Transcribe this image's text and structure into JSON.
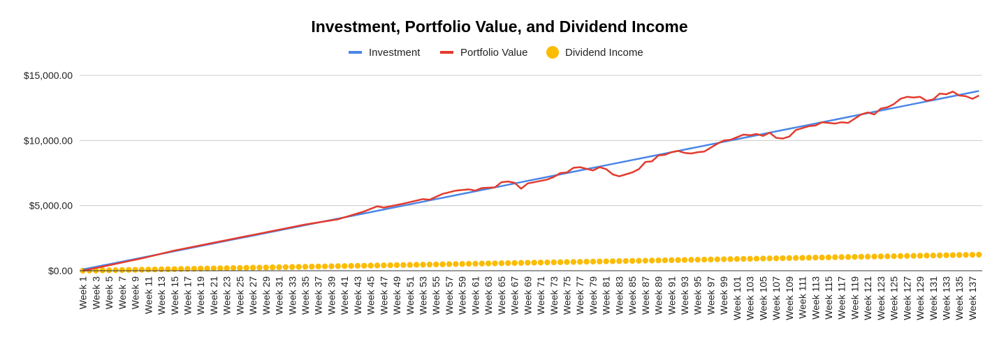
{
  "chart_data": {
    "type": "line",
    "title": "Investment, Portfolio Value, and Dividend Income",
    "xlabel": "",
    "ylabel": "",
    "x_label_prefix": "Week ",
    "x_count": 138,
    "x_tick_label_step": 2,
    "ylim": [
      0,
      15000
    ],
    "y_ticks": [
      0,
      5000,
      10000,
      15000
    ],
    "y_tick_labels": [
      "$0.00",
      "$5,000.00",
      "$10,000.00",
      "$15,000.00"
    ],
    "grid": true,
    "legend_position": "top",
    "colors": {
      "investment": "#4a86e8",
      "portfolio": "#e33b2e",
      "dividend": "#fbbc04",
      "grid": "#cccccc",
      "axis": "#333333"
    },
    "series": [
      {
        "name": "Investment",
        "style": "line",
        "weekly_increment": 100,
        "start_value": 0
      },
      {
        "name": "Portfolio Value",
        "style": "line",
        "keypoints": [
          [
            1,
            0
          ],
          [
            10,
            950
          ],
          [
            15,
            1550
          ],
          [
            20,
            2050
          ],
          [
            25,
            2550
          ],
          [
            30,
            3050
          ],
          [
            35,
            3550
          ],
          [
            40,
            3950
          ],
          [
            44,
            4550
          ],
          [
            46,
            4950
          ],
          [
            47,
            4850
          ],
          [
            50,
            5150
          ],
          [
            53,
            5500
          ],
          [
            54,
            5450
          ],
          [
            56,
            5900
          ],
          [
            58,
            6150
          ],
          [
            60,
            6250
          ],
          [
            61,
            6150
          ],
          [
            62,
            6350
          ],
          [
            64,
            6400
          ],
          [
            65,
            6800
          ],
          [
            66,
            6850
          ],
          [
            67,
            6750
          ],
          [
            68,
            6300
          ],
          [
            69,
            6700
          ],
          [
            72,
            7000
          ],
          [
            73,
            7200
          ],
          [
            74,
            7500
          ],
          [
            75,
            7550
          ],
          [
            76,
            7900
          ],
          [
            77,
            7950
          ],
          [
            79,
            7700
          ],
          [
            80,
            7950
          ],
          [
            81,
            7800
          ],
          [
            82,
            7400
          ],
          [
            83,
            7250
          ],
          [
            85,
            7550
          ],
          [
            86,
            7800
          ],
          [
            87,
            8350
          ],
          [
            88,
            8400
          ],
          [
            89,
            8850
          ],
          [
            90,
            8900
          ],
          [
            91,
            9100
          ],
          [
            92,
            9200
          ],
          [
            93,
            9050
          ],
          [
            94,
            9000
          ],
          [
            95,
            9100
          ],
          [
            96,
            9150
          ],
          [
            98,
            9750
          ],
          [
            99,
            10000
          ],
          [
            100,
            10050
          ],
          [
            102,
            10450
          ],
          [
            103,
            10400
          ],
          [
            104,
            10500
          ],
          [
            105,
            10350
          ],
          [
            106,
            10600
          ],
          [
            107,
            10200
          ],
          [
            108,
            10150
          ],
          [
            109,
            10300
          ],
          [
            110,
            10800
          ],
          [
            112,
            11100
          ],
          [
            113,
            11150
          ],
          [
            114,
            11400
          ],
          [
            116,
            11300
          ],
          [
            117,
            11400
          ],
          [
            118,
            11350
          ],
          [
            120,
            12000
          ],
          [
            121,
            12150
          ],
          [
            122,
            12000
          ],
          [
            123,
            12450
          ],
          [
            124,
            12550
          ],
          [
            125,
            12800
          ],
          [
            126,
            13200
          ],
          [
            127,
            13350
          ],
          [
            128,
            13300
          ],
          [
            129,
            13350
          ],
          [
            130,
            13050
          ],
          [
            131,
            13150
          ],
          [
            132,
            13600
          ],
          [
            133,
            13550
          ],
          [
            134,
            13750
          ],
          [
            135,
            13450
          ],
          [
            136,
            13400
          ],
          [
            137,
            13200
          ],
          [
            138,
            13450
          ],
          [
            139,
            13300
          ]
        ]
      },
      {
        "name": "Dividend Income",
        "style": "points",
        "weekly_increment": 9,
        "start_value": 0
      }
    ]
  }
}
